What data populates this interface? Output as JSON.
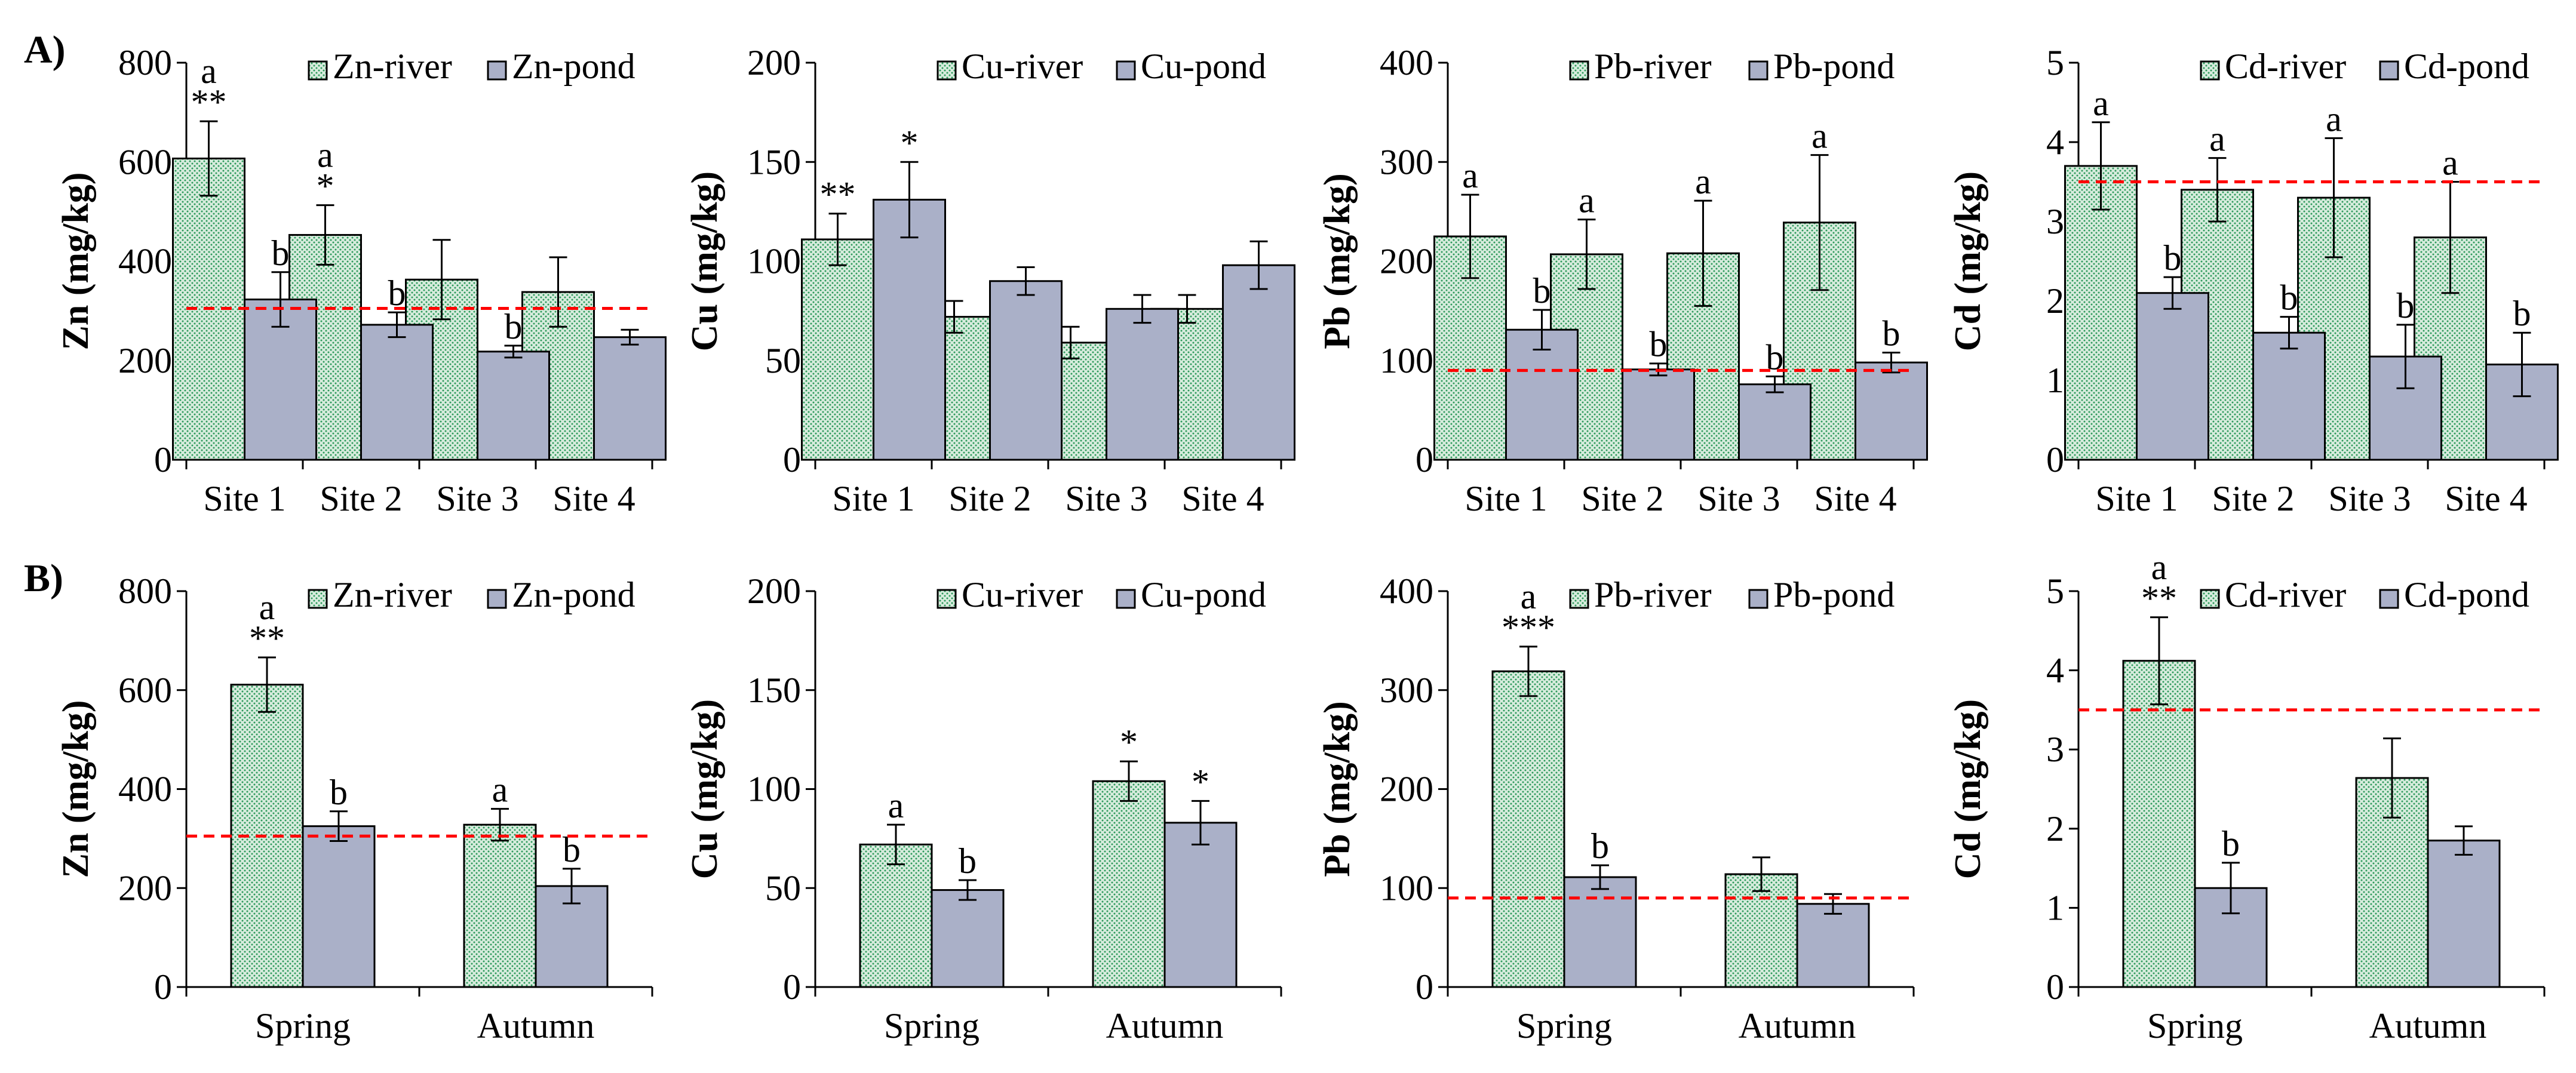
{
  "figure": {
    "panel_labels": [
      "A)",
      "B)"
    ],
    "colors": {
      "river_fill": "#d7ecdd",
      "river_dot": "#2e9a5c",
      "pond_fill": "#aab0c8",
      "reference_line": "#ff0000",
      "axis": "#000000"
    }
  },
  "chart_data": [
    {
      "id": "A-Zn",
      "type": "bar",
      "row": "A",
      "ylabel": "Zn (mg/kg)",
      "ylim": [
        0,
        800
      ],
      "yticks": [
        "0",
        "200",
        "400",
        "600",
        "800"
      ],
      "categories": [
        "Site 1",
        "Site 2",
        "Site 3",
        "Site 4"
      ],
      "reference_line": 305,
      "series": [
        {
          "name": "Zn-river",
          "style": "river",
          "values": [
            607,
            453,
            363,
            338
          ],
          "errors": [
            75,
            60,
            80,
            70
          ],
          "labels": [
            "a\n**",
            "a\n*",
            "",
            ""
          ]
        },
        {
          "name": "Zn-pond",
          "style": "pond",
          "values": [
            323,
            272,
            218,
            247
          ],
          "errors": [
            55,
            25,
            12,
            15
          ],
          "labels": [
            "b",
            "b",
            "b",
            ""
          ]
        }
      ]
    },
    {
      "id": "A-Cu",
      "type": "bar",
      "row": "A",
      "ylabel": "Cu (mg/kg)",
      "ylim": [
        0,
        200
      ],
      "yticks": [
        "0",
        "50",
        "100",
        "150",
        "200"
      ],
      "categories": [
        "Site 1",
        "Site 2",
        "Site 3",
        "Site 4"
      ],
      "reference_line": null,
      "series": [
        {
          "name": "Cu-river",
          "style": "river",
          "values": [
            111,
            72,
            59,
            76
          ],
          "errors": [
            13,
            8,
            8,
            7
          ],
          "labels": [
            "**",
            "",
            "",
            ""
          ]
        },
        {
          "name": "Cu-pond",
          "style": "pond",
          "values": [
            131,
            90,
            76,
            98
          ],
          "errors": [
            19,
            7,
            7,
            12
          ],
          "labels": [
            "*",
            "",
            "",
            ""
          ]
        }
      ]
    },
    {
      "id": "A-Pb",
      "type": "bar",
      "row": "A",
      "ylabel": "Pb (mg/kg)",
      "ylim": [
        0,
        400
      ],
      "yticks": [
        "0",
        "100",
        "200",
        "300",
        "400"
      ],
      "categories": [
        "Site 1",
        "Site 2",
        "Site 3",
        "Site 4"
      ],
      "reference_line": 90,
      "series": [
        {
          "name": "Pb-river",
          "style": "river",
          "values": [
            225,
            207,
            208,
            239
          ],
          "errors": [
            42,
            35,
            53,
            68
          ],
          "labels": [
            "a",
            "a",
            "a",
            "a"
          ]
        },
        {
          "name": "Pb-pond",
          "style": "pond",
          "values": [
            131,
            91,
            76,
            98
          ],
          "errors": [
            20,
            6,
            8,
            10
          ],
          "labels": [
            "b",
            "b",
            "b",
            "b"
          ]
        }
      ]
    },
    {
      "id": "A-Cd",
      "type": "bar",
      "row": "A",
      "ylabel": "Cd (mg/kg)",
      "ylim": [
        0,
        5
      ],
      "yticks": [
        "0",
        "1",
        "2",
        "3",
        "4",
        "5"
      ],
      "categories": [
        "Site 1",
        "Site 2",
        "Site 3",
        "Site 4"
      ],
      "reference_line": 3.5,
      "series": [
        {
          "name": "Cd-river",
          "style": "river",
          "values": [
            3.7,
            3.4,
            3.3,
            2.8
          ],
          "errors": [
            0.55,
            0.4,
            0.75,
            0.7
          ],
          "labels": [
            "a",
            "a",
            "a",
            "a"
          ]
        },
        {
          "name": "Cd-pond",
          "style": "pond",
          "values": [
            2.1,
            1.6,
            1.3,
            1.2
          ],
          "errors": [
            0.2,
            0.2,
            0.4,
            0.4
          ],
          "labels": [
            "b",
            "b",
            "b",
            "b"
          ]
        }
      ]
    },
    {
      "id": "B-Zn",
      "type": "bar",
      "row": "B",
      "ylabel": "Zn (mg/kg)",
      "ylim": [
        0,
        800
      ],
      "yticks": [
        "0",
        "200",
        "400",
        "600",
        "800"
      ],
      "categories": [
        "Spring",
        "Autumn"
      ],
      "reference_line": 305,
      "series": [
        {
          "name": "Zn-river",
          "style": "river",
          "values": [
            611,
            328
          ],
          "errors": [
            55,
            32
          ],
          "labels": [
            "a\n**",
            "a"
          ]
        },
        {
          "name": "Zn-pond",
          "style": "pond",
          "values": [
            325,
            204
          ],
          "errors": [
            30,
            35
          ],
          "labels": [
            "b",
            "b"
          ]
        }
      ]
    },
    {
      "id": "B-Cu",
      "type": "bar",
      "row": "B",
      "ylabel": "Cu (mg/kg)",
      "ylim": [
        0,
        200
      ],
      "yticks": [
        "0",
        "50",
        "100",
        "150",
        "200"
      ],
      "categories": [
        "Spring",
        "Autumn"
      ],
      "reference_line": null,
      "series": [
        {
          "name": "Cu-river",
          "style": "river",
          "values": [
            72,
            104
          ],
          "errors": [
            10,
            10
          ],
          "labels": [
            "a",
            "*"
          ]
        },
        {
          "name": "Cu-pond",
          "style": "pond",
          "values": [
            49,
            83
          ],
          "errors": [
            5,
            11
          ],
          "labels": [
            "b",
            "*"
          ]
        }
      ]
    },
    {
      "id": "B-Pb",
      "type": "bar",
      "row": "B",
      "ylabel": "Pb (mg/kg)",
      "ylim": [
        0,
        400
      ],
      "yticks": [
        "0",
        "100",
        "200",
        "300",
        "400"
      ],
      "categories": [
        "Spring",
        "Autumn"
      ],
      "reference_line": 90,
      "series": [
        {
          "name": "Pb-river",
          "style": "river",
          "values": [
            319,
            114
          ],
          "errors": [
            25,
            17
          ],
          "labels": [
            "a\n***",
            ""
          ]
        },
        {
          "name": "Pb-pond",
          "style": "pond",
          "values": [
            111,
            84
          ],
          "errors": [
            12,
            10
          ],
          "labels": [
            "b",
            ""
          ]
        }
      ]
    },
    {
      "id": "B-Cd",
      "type": "bar",
      "row": "B",
      "ylabel": "Cd (mg/kg)",
      "ylim": [
        0,
        5
      ],
      "yticks": [
        "0",
        "1",
        "2",
        "3",
        "4",
        "5"
      ],
      "categories": [
        "Spring",
        "Autumn"
      ],
      "reference_line": 3.5,
      "series": [
        {
          "name": "Cd-river",
          "style": "river",
          "values": [
            4.12,
            2.64
          ],
          "errors": [
            0.55,
            0.5
          ],
          "labels": [
            "a\n**",
            ""
          ]
        },
        {
          "name": "Cd-pond",
          "style": "pond",
          "values": [
            1.25,
            1.85
          ],
          "errors": [
            0.32,
            0.18
          ],
          "labels": [
            "b",
            ""
          ]
        }
      ]
    }
  ]
}
